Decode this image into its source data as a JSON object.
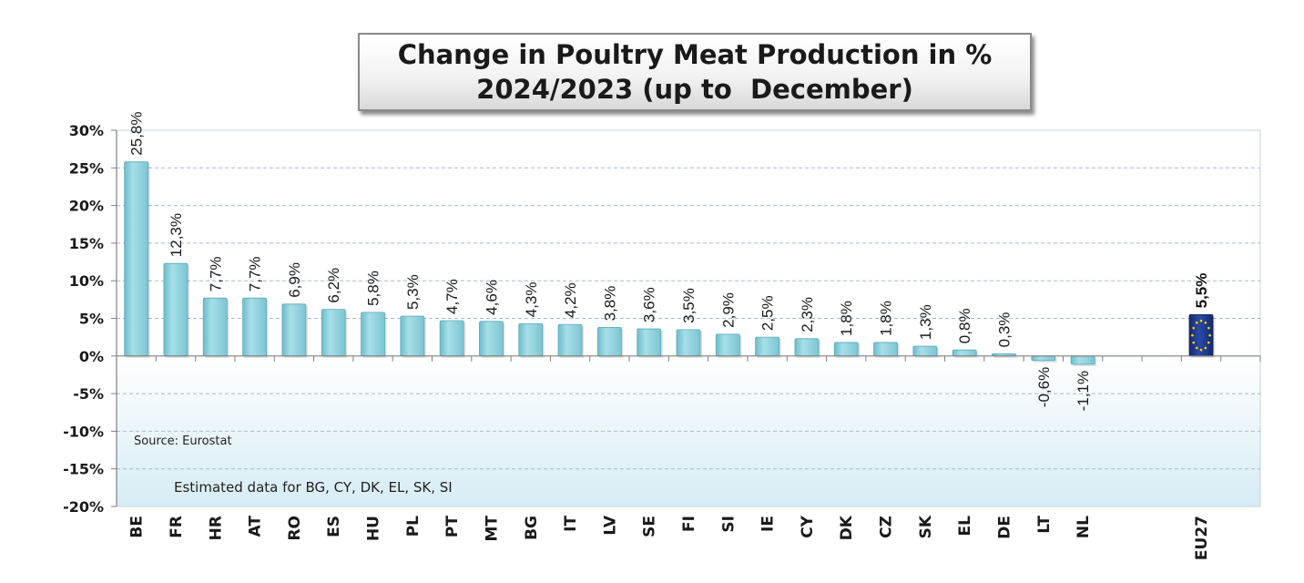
{
  "chart_data": {
    "type": "bar",
    "title_line1": "Change in Poultry Meat Production in %",
    "title_line2": "2024/2023 (up to  December)",
    "categories": [
      "BE",
      "FR",
      "HR",
      "AT",
      "RO",
      "ES",
      "HU",
      "PL",
      "PT",
      "MT",
      "BG",
      "IT",
      "LV",
      "SE",
      "FI",
      "SI",
      "IE",
      "CY",
      "DK",
      "CZ",
      "SK",
      "EL",
      "DE",
      "LT",
      "NL",
      "EU27"
    ],
    "values": [
      25.8,
      12.3,
      7.7,
      7.7,
      6.9,
      6.2,
      5.8,
      5.3,
      4.7,
      4.6,
      4.3,
      4.2,
      3.8,
      3.6,
      3.5,
      2.9,
      2.5,
      2.3,
      1.8,
      1.8,
      1.3,
      0.8,
      0.3,
      -0.6,
      -1.1,
      5.5
    ],
    "value_labels": [
      "25,8%",
      "12,3%",
      "7,7%",
      "7,7%",
      "6,9%",
      "6,2%",
      "5,8%",
      "5,3%",
      "4,7%",
      "4,6%",
      "4,3%",
      "4,2%",
      "3,8%",
      "3,6%",
      "3,5%",
      "2,9%",
      "2,5%",
      "2,3%",
      "1,8%",
      "1,8%",
      "1,3%",
      "0,8%",
      "0,3%",
      "-0,6%",
      "-1,1%",
      "5,5%"
    ],
    "ylim": [
      -20,
      30
    ],
    "y_ticks": [
      30,
      25,
      20,
      15,
      10,
      5,
      0,
      -5,
      -10,
      -15,
      -20
    ],
    "y_tick_labels": [
      "30%",
      "25%",
      "20%",
      "15%",
      "10%",
      "5%",
      "0%",
      "-5%",
      "-10%",
      "-15%",
      "-20%"
    ],
    "grid": true,
    "annotations": {
      "source": "Source: Eurostat",
      "estimated": "Estimated data for BG, CY, DK, EL, SK, SI"
    },
    "colors": {
      "bars": "#8fd0dc",
      "eu_bar": "#1f3a8a",
      "eu_stars": "#f2d21a",
      "grid": "#a9b8d6"
    }
  }
}
